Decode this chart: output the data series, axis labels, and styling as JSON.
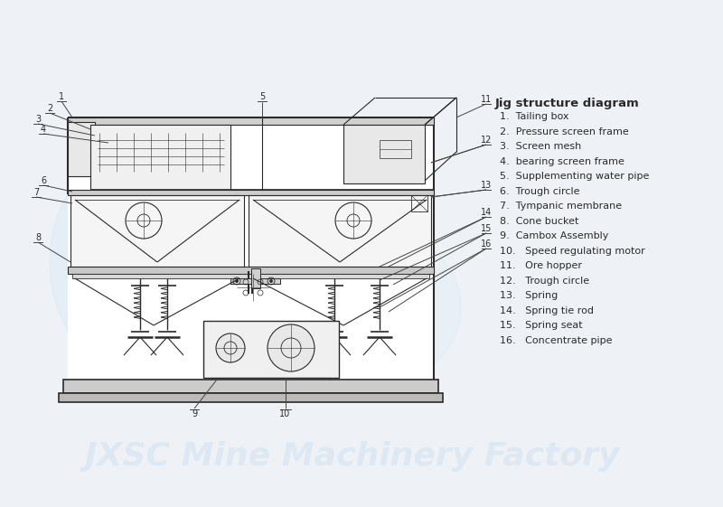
{
  "bg_color": "#eef2f7",
  "line_color": "#2a2a2a",
  "label_color": "#2a2a2a",
  "watermark_color": "#dde8f0",
  "title": "Jig structure diagram",
  "legend_items": [
    "1.  Tailing box",
    "2.  Pressure screen frame",
    "3.  Screen mesh",
    "4.  bearing screen frame",
    "5.  Supplementing water pipe",
    "6.  Trough circle",
    "7.  Tympanic membrane",
    "8.  Cone bucket",
    "9.  Cambox Assembly",
    "10.   Speed regulating motor",
    "11.   Ore hopper",
    "12.   Trough circle",
    "13.   Spring",
    "14.   Spring tie rod",
    "15.   Spring seat",
    "16.   Concentrate pipe"
  ],
  "watermark_text": "JXSC Mine Machinery Factory"
}
